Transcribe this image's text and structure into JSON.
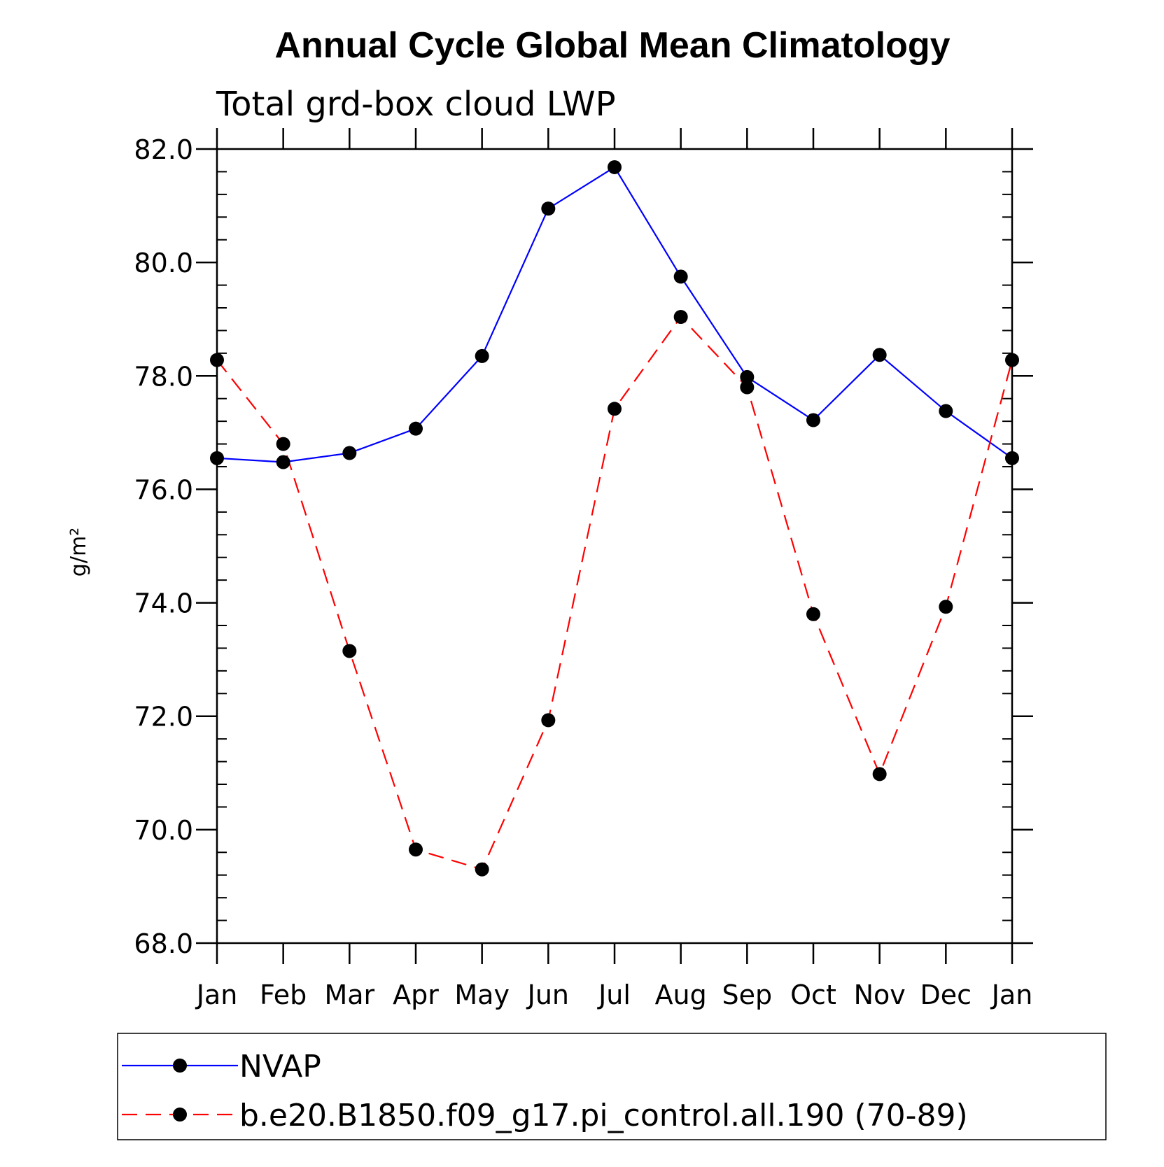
{
  "chart_data": {
    "type": "line",
    "title": "Annual Cycle Global Mean Climatology",
    "subtitle": "Total grd-box cloud LWP",
    "ylabel": "g/m²",
    "xlabel": "",
    "categories": [
      "Jan",
      "Feb",
      "Mar",
      "Apr",
      "May",
      "Jun",
      "Jul",
      "Aug",
      "Sep",
      "Oct",
      "Nov",
      "Dec",
      "Jan"
    ],
    "ylim": [
      68.0,
      82.0
    ],
    "yticks": [
      "68.0",
      "70.0",
      "72.0",
      "74.0",
      "76.0",
      "78.0",
      "80.0",
      "82.0"
    ],
    "grid": false,
    "legend_position": "bottom",
    "series": [
      {
        "name": "NVAP",
        "color": "#0000ff",
        "dash": "solid",
        "marker": "filled-circle",
        "values": [
          76.55,
          76.48,
          76.64,
          77.07,
          78.35,
          80.95,
          81.68,
          79.75,
          77.98,
          77.22,
          78.37,
          77.38,
          76.55
        ]
      },
      {
        "name": "b.e20.B1850.f09_g17.pi_control.all.190 (70-89)",
        "color": "#ff0000",
        "dash": "dashed",
        "marker": "filled-circle",
        "values": [
          78.28,
          76.8,
          73.15,
          69.65,
          69.3,
          71.93,
          77.42,
          79.04,
          77.8,
          73.8,
          70.98,
          73.93,
          78.28
        ]
      }
    ]
  }
}
